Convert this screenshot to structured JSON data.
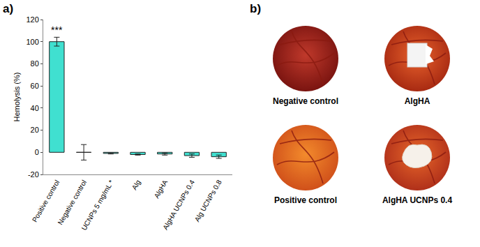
{
  "chart_data": {
    "type": "bar",
    "y_label": "Hemolysis (%)",
    "categories": [
      "Positive control",
      "Negative control",
      "UCNPs 5 mg/mL *",
      "Alg",
      "AlgHA",
      "AlgHA UCNPs 0.4",
      "Alg UCNPs 0.8"
    ],
    "values": [
      100,
      0,
      -1,
      -2,
      -1.5,
      -3,
      -4
    ],
    "errors": [
      4,
      7,
      0.5,
      0.5,
      1,
      1.5,
      1.5
    ],
    "color": "#40e0d0",
    "ylim": [
      -20,
      120
    ],
    "yticks": [
      -20,
      0,
      20,
      40,
      60,
      80,
      100,
      120
    ],
    "grid": false,
    "annotations": [
      {
        "category": "Positive control",
        "text": "***"
      }
    ]
  },
  "figure": {
    "panel_labels": [
      "a)",
      "b)"
    ],
    "photos": [
      {
        "label": "Negative control"
      },
      {
        "label": "AlgHA"
      },
      {
        "label": "Positive control"
      },
      {
        "label": "AlgHA UCNPs 0.4"
      }
    ]
  }
}
